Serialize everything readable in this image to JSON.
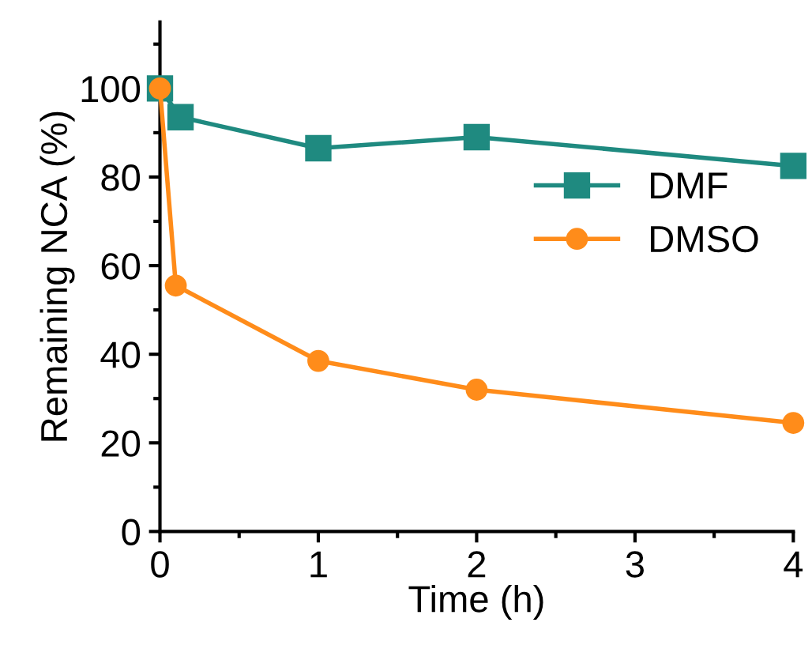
{
  "chart_data": {
    "type": "line",
    "xlabel": "Time (h)",
    "ylabel": "Remaining NCA (%)",
    "xlim": [
      0,
      4
    ],
    "xticks": [
      0,
      1,
      2,
      3,
      4
    ],
    "ylim": [
      0,
      115
    ],
    "yticks": [
      0,
      20,
      40,
      60,
      80,
      100
    ],
    "grid": false,
    "legend": "right",
    "line_style": "solid",
    "series": [
      {
        "name": "DMF",
        "color": "#1f8a80",
        "marker": "square",
        "x": [
          0,
          0.13,
          1,
          2,
          4
        ],
        "values": [
          100,
          93.5,
          86.5,
          89,
          82.5
        ]
      },
      {
        "name": "DMSO",
        "color": "#ff8c1a",
        "marker": "circle",
        "x": [
          0,
          0.1,
          1,
          2,
          4
        ],
        "values": [
          100,
          55.5,
          38.5,
          32,
          24.5
        ]
      }
    ]
  }
}
